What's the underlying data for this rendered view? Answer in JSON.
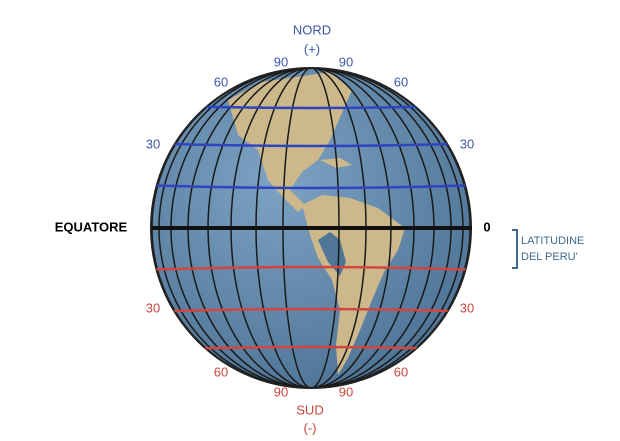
{
  "north": {
    "label": "NORD",
    "sign": "(+)",
    "latitudes": [
      "90",
      "90",
      "60",
      "60",
      "30",
      "30"
    ]
  },
  "south": {
    "label": "SUD",
    "sign": "(-)",
    "latitudes": [
      "30",
      "30",
      "60",
      "60",
      "90",
      "90"
    ]
  },
  "equator": {
    "label": "EQUATORE",
    "value": "0"
  },
  "peru": {
    "line1": "LATITUDINE",
    "line2": "DEL PERU'"
  }
}
